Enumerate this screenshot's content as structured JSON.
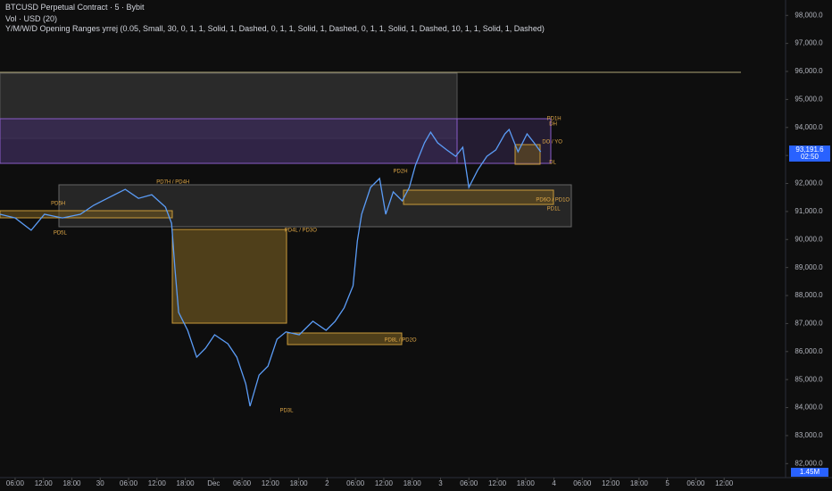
{
  "chart_data": {
    "type": "line",
    "title": "BTCUSD Perpetual Contract · 5 · Bybit",
    "subtitle": "Vol · USD (20)",
    "indicator": "Y/M/W/D Opening Ranges yrrej (0.05, Small, 30, 0, 1, 1, Solid, 1, Dashed, 0, 1, 1, Solid, 1, Dashed, 0, 1, 1, Solid, 1, Dashed, 10, 1, 1, Solid, 1, Dashed)",
    "color": "#5b9cf6",
    "x": [
      -3.2,
      0,
      3.4,
      6.2,
      10,
      13.8,
      16.6,
      19.5,
      23.3,
      26.1,
      28.9,
      31.8,
      33.1,
      33.8,
      34.6,
      36.5,
      38.4,
      40.3,
      42.2,
      45,
      46.9,
      48.8,
      49.7,
      51.6,
      53.5,
      55.4,
      57.3,
      60.1,
      63,
      65.8,
      67.7,
      69.6,
      71.5,
      72.4,
      73.3,
      75.2,
      77.1,
      78.4,
      80,
      81.9,
      83.4,
      84.7,
      86.6,
      87.9,
      89.4,
      91.3,
      93.2,
      94.7,
      96,
      97.9,
      99.8,
      101.7,
      103.6,
      104.5,
      106.4,
      108.3,
      109.8,
      111.2
    ],
    "values": [
      90900,
      90770,
      90330,
      90900,
      90770,
      90900,
      91220,
      91470,
      91790,
      91470,
      91600,
      91160,
      90580,
      88990,
      87400,
      86760,
      85800,
      86120,
      86600,
      86280,
      85800,
      84850,
      84050,
      85160,
      85480,
      86440,
      86700,
      86600,
      87080,
      86760,
      87080,
      87560,
      88350,
      89950,
      90900,
      91860,
      92180,
      90900,
      91700,
      91380,
      91860,
      92650,
      93450,
      93830,
      93450,
      93200,
      92970,
      93290,
      91860,
      92490,
      92970,
      93200,
      93770,
      93930,
      93130,
      93770,
      93450,
      93130
    ],
    "xlim": [
      -3.2,
      163
    ],
    "xticks": [
      {
        "value": 0,
        "label": "06:00"
      },
      {
        "value": 6,
        "label": "12:00"
      },
      {
        "value": 12,
        "label": "18:00"
      },
      {
        "value": 18,
        "label": "30"
      },
      {
        "value": 24,
        "label": "06:00"
      },
      {
        "value": 30,
        "label": "12:00"
      },
      {
        "value": 36,
        "label": "18:00"
      },
      {
        "value": 42,
        "label": "Dec"
      },
      {
        "value": 48,
        "label": "06:00"
      },
      {
        "value": 54,
        "label": "12:00"
      },
      {
        "value": 60,
        "label": "18:00"
      },
      {
        "value": 66,
        "label": "2"
      },
      {
        "value": 72,
        "label": "06:00"
      },
      {
        "value": 78,
        "label": "12:00"
      },
      {
        "value": 84,
        "label": "18:00"
      },
      {
        "value": 90,
        "label": "3"
      },
      {
        "value": 96,
        "label": "06:00"
      },
      {
        "value": 102,
        "label": "12:00"
      },
      {
        "value": 108,
        "label": "18:00"
      },
      {
        "value": 114,
        "label": "4"
      },
      {
        "value": 120,
        "label": "06:00"
      },
      {
        "value": 126,
        "label": "12:00"
      },
      {
        "value": 132,
        "label": "18:00"
      },
      {
        "value": 138,
        "label": "5"
      },
      {
        "value": 144,
        "label": "06:00"
      },
      {
        "value": 150,
        "label": "12:00"
      }
    ],
    "ylim": [
      81500,
      98550
    ],
    "yticks": [
      {
        "value": 82000,
        "label": "82,000.0"
      },
      {
        "value": 83000,
        "label": "83,000.0"
      },
      {
        "value": 84000,
        "label": "84,000.0"
      },
      {
        "value": 85000,
        "label": "85,000.0"
      },
      {
        "value": 86000,
        "label": "86,000.0"
      },
      {
        "value": 87000,
        "label": "87,000.0"
      },
      {
        "value": 88000,
        "label": "88,000.0"
      },
      {
        "value": 89000,
        "label": "89,000.0"
      },
      {
        "value": 90000,
        "label": "90,000.0"
      },
      {
        "value": 91000,
        "label": "91,000.0"
      },
      {
        "value": 92000,
        "label": "92,000.0"
      },
      {
        "value": 93000,
        "label": "93,000.0"
      },
      {
        "value": 94000,
        "label": "94,000.0"
      },
      {
        "value": 95000,
        "label": "95,000.0"
      },
      {
        "value": 96000,
        "label": "96,000.0"
      },
      {
        "value": 97000,
        "label": "97,000.0"
      },
      {
        "value": 98000,
        "label": "98,000.0"
      }
    ],
    "annotations": [
      {
        "text": "PD5H",
        "x": 7.6,
        "y": 91280
      },
      {
        "text": "PD5L",
        "x": 8.1,
        "y": 90230
      },
      {
        "text": "PD7H / PD4H",
        "x": 29.9,
        "y": 92050
      },
      {
        "text": "PD3L",
        "x": 56,
        "y": 83890
      },
      {
        "text": "PD4L / PD3O",
        "x": 57,
        "y": 90330
      },
      {
        "text": "PD2H",
        "x": 80,
        "y": 92430
      },
      {
        "text": "PD8L / PD2O",
        "x": 78.1,
        "y": 86410
      },
      {
        "text": "PD6O / PD1O",
        "x": 110.2,
        "y": 91410
      },
      {
        "text": "PD1L",
        "x": 112.5,
        "y": 91090
      },
      {
        "text": "PD1H",
        "x": 112.5,
        "y": 94310
      },
      {
        "text": "DH",
        "x": 113,
        "y": 94120
      },
      {
        "text": "DO / YO",
        "x": 111.5,
        "y": 93480
      },
      {
        "text": "DL",
        "x": 113,
        "y": 92750
      }
    ],
    "last_price_label": "93,191.6",
    "countdown": "02:50",
    "volume_label": "1.45M"
  }
}
